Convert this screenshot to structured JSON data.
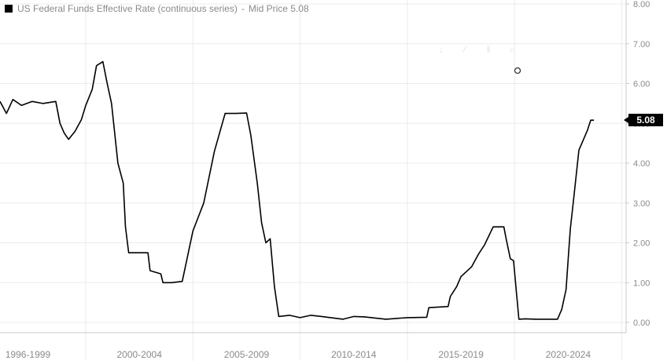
{
  "legend": {
    "series_name": "US Federal Funds Effective Rate (continuous series)",
    "separator": "-",
    "price_label": "Mid Price 5.08"
  },
  "toolbar": {
    "icons": [
      "download-icon",
      "pencil-icon",
      "pause-icon",
      "zoom-icon"
    ],
    "glyphs": [
      "↓",
      "∕",
      "‖",
      "⌕"
    ]
  },
  "chart_data": {
    "type": "line",
    "ylim": [
      0,
      8
    ],
    "y_ticks": [
      "0.00",
      "1.00",
      "2.00",
      "3.00",
      "4.00",
      "5.00",
      "6.00",
      "7.00",
      "8.00"
    ],
    "x_ticks": [
      "1996-1999",
      "2000-2004",
      "2005-2009",
      "2010-2014",
      "2015-2019",
      "2020-2024"
    ],
    "last_value": "5.08",
    "line_color": "#000000",
    "grid": true,
    "series": [
      {
        "points": [
          [
            1996.0,
            5.55
          ],
          [
            1996.3,
            5.25
          ],
          [
            1996.6,
            5.6
          ],
          [
            1997.0,
            5.45
          ],
          [
            1997.5,
            5.55
          ],
          [
            1998.0,
            5.5
          ],
          [
            1998.6,
            5.55
          ],
          [
            1998.8,
            5.0
          ],
          [
            1999.0,
            4.75
          ],
          [
            1999.2,
            4.6
          ],
          [
            1999.5,
            4.8
          ],
          [
            1999.8,
            5.1
          ],
          [
            2000.0,
            5.45
          ],
          [
            2000.3,
            5.85
          ],
          [
            2000.5,
            6.45
          ],
          [
            2000.8,
            6.55
          ],
          [
            2001.0,
            6.0
          ],
          [
            2001.2,
            5.5
          ],
          [
            2001.5,
            4.0
          ],
          [
            2001.75,
            3.5
          ],
          [
            2001.85,
            2.4
          ],
          [
            2002.0,
            1.75
          ],
          [
            2002.5,
            1.75
          ],
          [
            2002.9,
            1.75
          ],
          [
            2003.0,
            1.3
          ],
          [
            2003.5,
            1.22
          ],
          [
            2003.6,
            1.0
          ],
          [
            2004.0,
            1.0
          ],
          [
            2004.5,
            1.03
          ],
          [
            2005.0,
            2.3
          ],
          [
            2005.5,
            3.0
          ],
          [
            2006.0,
            4.3
          ],
          [
            2006.5,
            5.25
          ],
          [
            2007.0,
            5.25
          ],
          [
            2007.5,
            5.26
          ],
          [
            2007.7,
            4.7
          ],
          [
            2008.0,
            3.5
          ],
          [
            2008.2,
            2.5
          ],
          [
            2008.4,
            2.0
          ],
          [
            2008.6,
            2.1
          ],
          [
            2008.8,
            0.9
          ],
          [
            2009.0,
            0.15
          ],
          [
            2009.5,
            0.18
          ],
          [
            2010.0,
            0.12
          ],
          [
            2010.5,
            0.18
          ],
          [
            2011.0,
            0.15
          ],
          [
            2012.0,
            0.08
          ],
          [
            2012.5,
            0.15
          ],
          [
            2013.0,
            0.14
          ],
          [
            2014.0,
            0.08
          ],
          [
            2015.0,
            0.12
          ],
          [
            2015.9,
            0.13
          ],
          [
            2016.0,
            0.37
          ],
          [
            2016.9,
            0.4
          ],
          [
            2017.0,
            0.65
          ],
          [
            2017.3,
            0.9
          ],
          [
            2017.5,
            1.15
          ],
          [
            2018.0,
            1.4
          ],
          [
            2018.3,
            1.7
          ],
          [
            2018.6,
            1.95
          ],
          [
            2019.0,
            2.4
          ],
          [
            2019.5,
            2.4
          ],
          [
            2019.6,
            2.12
          ],
          [
            2019.8,
            1.6
          ],
          [
            2019.95,
            1.55
          ],
          [
            2020.2,
            0.08
          ],
          [
            2020.5,
            0.09
          ],
          [
            2021.0,
            0.08
          ],
          [
            2021.5,
            0.08
          ],
          [
            2022.0,
            0.08
          ],
          [
            2022.2,
            0.33
          ],
          [
            2022.4,
            0.83
          ],
          [
            2022.5,
            1.6
          ],
          [
            2022.6,
            2.35
          ],
          [
            2022.75,
            3.08
          ],
          [
            2022.9,
            3.83
          ],
          [
            2023.0,
            4.33
          ],
          [
            2023.2,
            4.58
          ],
          [
            2023.4,
            4.83
          ],
          [
            2023.55,
            5.08
          ],
          [
            2023.7,
            5.08
          ]
        ]
      }
    ]
  }
}
